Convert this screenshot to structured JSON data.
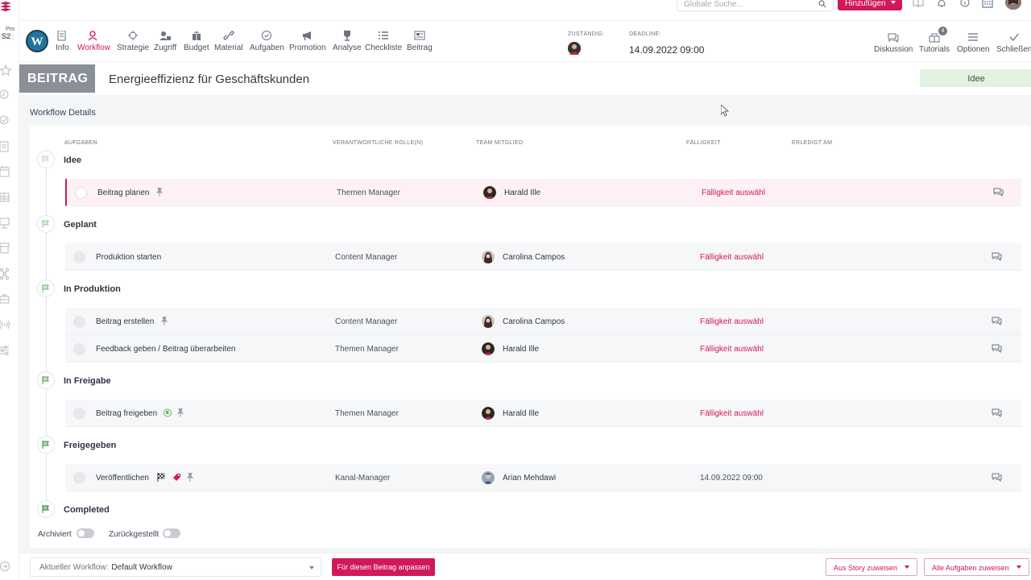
{
  "rail": {
    "org_small": "Pro",
    "org_code": "S2"
  },
  "topbar": {
    "search_placeholder": "Globale Suche...",
    "add_label": "Hinzufügen"
  },
  "nav": {
    "items": [
      {
        "label": "Info"
      },
      {
        "label": "Workflow"
      },
      {
        "label": "Strategie"
      },
      {
        "label": "Zugriff"
      },
      {
        "label": "Budget"
      },
      {
        "label": "Material"
      },
      {
        "label": "Aufgaben"
      },
      {
        "label": "Promotion"
      },
      {
        "label": "Analyse"
      },
      {
        "label": "Checkliste"
      },
      {
        "label": "Beitrag"
      }
    ],
    "assignee_label": "ZUSTÄNDIG:",
    "deadline_label": "DEADLINE:",
    "deadline_value": "14.09.2022 09:00",
    "right": [
      {
        "label": "Diskussion"
      },
      {
        "label": "Tutorials"
      },
      {
        "label": "Optionen"
      },
      {
        "label": "Schließen"
      }
    ],
    "tutorials_badge": "4"
  },
  "header": {
    "type": "BEITRAG",
    "title": "Energieeffizienz für Geschäftskunden",
    "status": "Idee"
  },
  "workflow": {
    "section_title": "Workflow Details",
    "columns": {
      "task": "AUFGABEN",
      "role": "VERANTWORTLICHE ROLLE(N)",
      "member": "TEAM MITGLIED",
      "due": "FÄLLIGKEIT",
      "done": "ERLEDIGT AM"
    },
    "stages": [
      {
        "name": "Idee"
      },
      {
        "name": "Geplant"
      },
      {
        "name": "In Produktion"
      },
      {
        "name": "In Freigabe"
      },
      {
        "name": "Freigegeben"
      },
      {
        "name": "Completed"
      }
    ],
    "tasks": [
      {
        "name": "Beitrag planen",
        "role": "Themen Manager",
        "member": "Harald Ille",
        "due": "Fälligkeit auswähl"
      },
      {
        "name": "Produktion starten",
        "role": "Content Manager",
        "member": "Carolina Campos",
        "due": "Fälligkeit auswähl"
      },
      {
        "name": "Beitrag erstellen",
        "role": "Content Manager",
        "member": "Carolina Campos",
        "due": "Fälligkeit auswähl"
      },
      {
        "name": "Feedback geben / Beitrag überarbeiten",
        "role": "Themen Manager",
        "member": "Harald Ille",
        "due": "Fälligkeit auswähl"
      },
      {
        "name": "Beitrag freigeben",
        "role": "Themen Manager",
        "member": "Harald Ille",
        "due": "Fälligkeit auswähl"
      },
      {
        "name": "Veröffentlichen",
        "role": "Kanal-Manager",
        "member": "Arian Mehdawi",
        "due": "14.09.2022 09:00"
      }
    ],
    "toggles": {
      "archived": "Archiviert",
      "deferred": "Zurückgestellt"
    }
  },
  "bottom": {
    "workflow_label": "Aktueller Workflow:",
    "workflow_value": "Default Workflow",
    "customize": "Für diesen Beitrag anpassen",
    "assign_story": "Aus Story zuweisen",
    "assign_all": "Alle Aufgaben zuweisen"
  },
  "colors": {
    "accent": "#d1185a",
    "status_bg": "#e3f2e3",
    "chip_gray": "#8a9098"
  }
}
